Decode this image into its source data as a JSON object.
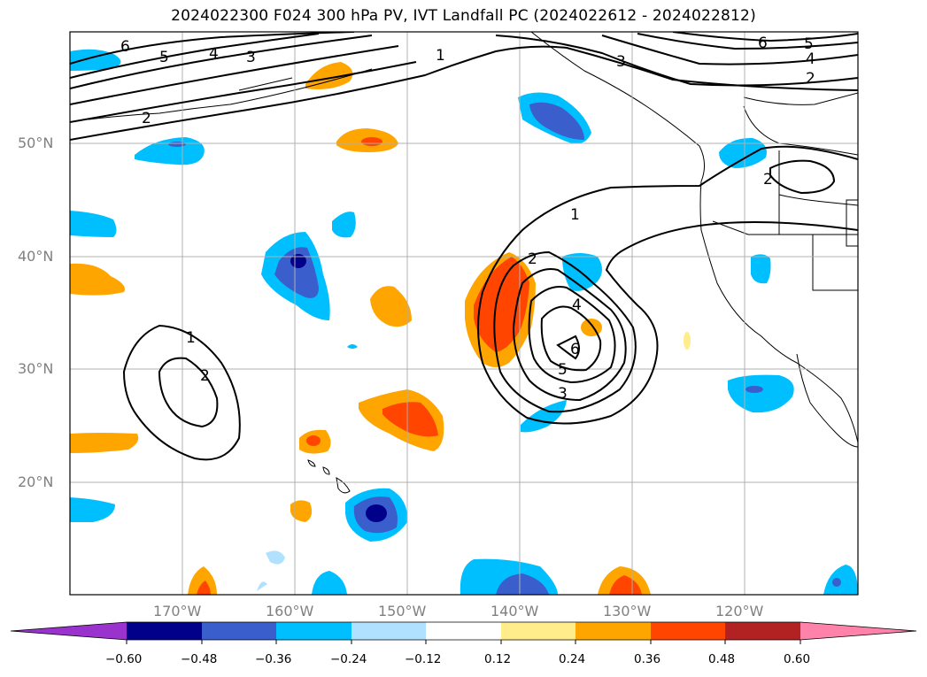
{
  "title": "2024022300 F024 300 hPa PV, IVT Landfall PC (2024022612 - 2024022812)",
  "lat_labels": [
    "50°N",
    "40°N",
    "30°N",
    "20°N"
  ],
  "lon_labels": [
    "170°W",
    "160°W",
    "150°W",
    "140°W",
    "130°W",
    "120°W"
  ],
  "pv_contour_labels": [
    "1",
    "2",
    "3",
    "4",
    "5",
    "6"
  ],
  "colorbar": {
    "ticks": [
      "−0.60",
      "−0.48",
      "−0.36",
      "−0.24",
      "−0.12",
      "0.12",
      "0.24",
      "0.36",
      "0.48",
      "0.60"
    ],
    "colors": [
      "#9a32cd",
      "#00008b",
      "#3a5fcd",
      "#00bfff",
      "#b0e2ff",
      "#ffffff",
      "#ffec8b",
      "#ffa500",
      "#ff4500",
      "#b22222",
      "#ff82ab"
    ]
  }
}
